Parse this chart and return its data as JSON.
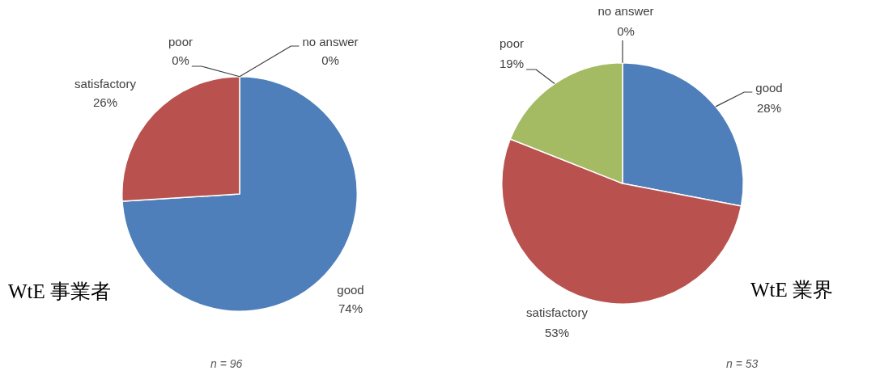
{
  "chart_data": [
    {
      "type": "pie",
      "title": "WtE 事業者",
      "categories": [
        "good",
        "satisfactory",
        "poor",
        "no answer"
      ],
      "values": [
        74,
        26,
        0,
        0
      ],
      "colors": [
        "#4f7fba",
        "#b9524f",
        "#a4ba63",
        "#8064a2"
      ],
      "value_labels": [
        "74%",
        "26%",
        "0%",
        "0%"
      ],
      "annotations": [
        "n = 96"
      ]
    },
    {
      "type": "pie",
      "title": "WtE 業界",
      "categories": [
        "good",
        "satisfactory",
        "poor",
        "no answer"
      ],
      "values": [
        28,
        53,
        19,
        0
      ],
      "colors": [
        "#4f7fba",
        "#b9524f",
        "#a4ba63",
        "#8064a2"
      ],
      "value_labels": [
        "28%",
        "53%",
        "19%",
        "0%"
      ],
      "annotations": [
        "n = 53"
      ]
    }
  ]
}
